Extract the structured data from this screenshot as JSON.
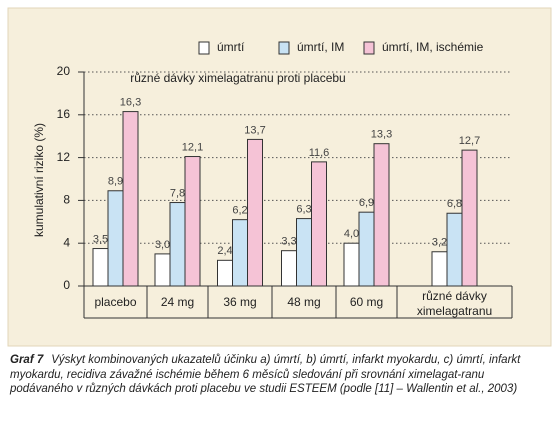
{
  "chart_data": {
    "type": "bar",
    "y_label": "kumulativní riziko (%)",
    "annotation": "různé dávky ximelagatranu proti placebu",
    "categories": [
      "placebo",
      "24 mg",
      "36 mg",
      "48 mg",
      "60 mg",
      "různé dávky ximelagatranu"
    ],
    "series": [
      {
        "name": "úmrtí",
        "color": "#ffffff",
        "values": [
          3.5,
          3.0,
          2.4,
          3.3,
          4.0,
          3.2
        ],
        "value_labels": [
          "3,5",
          "3,0",
          "2,4",
          "3,3",
          "4,0",
          "3,2"
        ]
      },
      {
        "name": "úmrtí, IM",
        "color": "#c9e3f4",
        "values": [
          8.9,
          7.8,
          6.2,
          6.3,
          6.9,
          6.8
        ],
        "value_labels": [
          "8,9",
          "7,8",
          "6,2",
          "6,3",
          "6,9",
          "6,8"
        ]
      },
      {
        "name": "úmrtí, IM, ischémie",
        "color": "#f5c3d6",
        "values": [
          16.3,
          12.1,
          13.7,
          11.6,
          13.3,
          12.7
        ],
        "value_labels": [
          "16,3",
          "12,1",
          "13,7",
          "11,6",
          "13,3",
          "12,7"
        ]
      }
    ],
    "ylim": [
      0,
      20
    ],
    "yticks": [
      0,
      4,
      8,
      12,
      16,
      20
    ],
    "grid": true
  },
  "caption": {
    "label": "Graf 7",
    "text": "Výskyt kombinovaných ukazatelů účinku a) úmrtí, b) úmrtí, infarkt myokardu, c) úmrtí, infarkt myokardu, recidiva závažné ischémie během 6 měsíců sledování při srovnání ximelagat-ranu podávaného v různých dávkách proti placebu ve studii ESTEEM (podle [11] – Wallentin et al., 2003)"
  }
}
